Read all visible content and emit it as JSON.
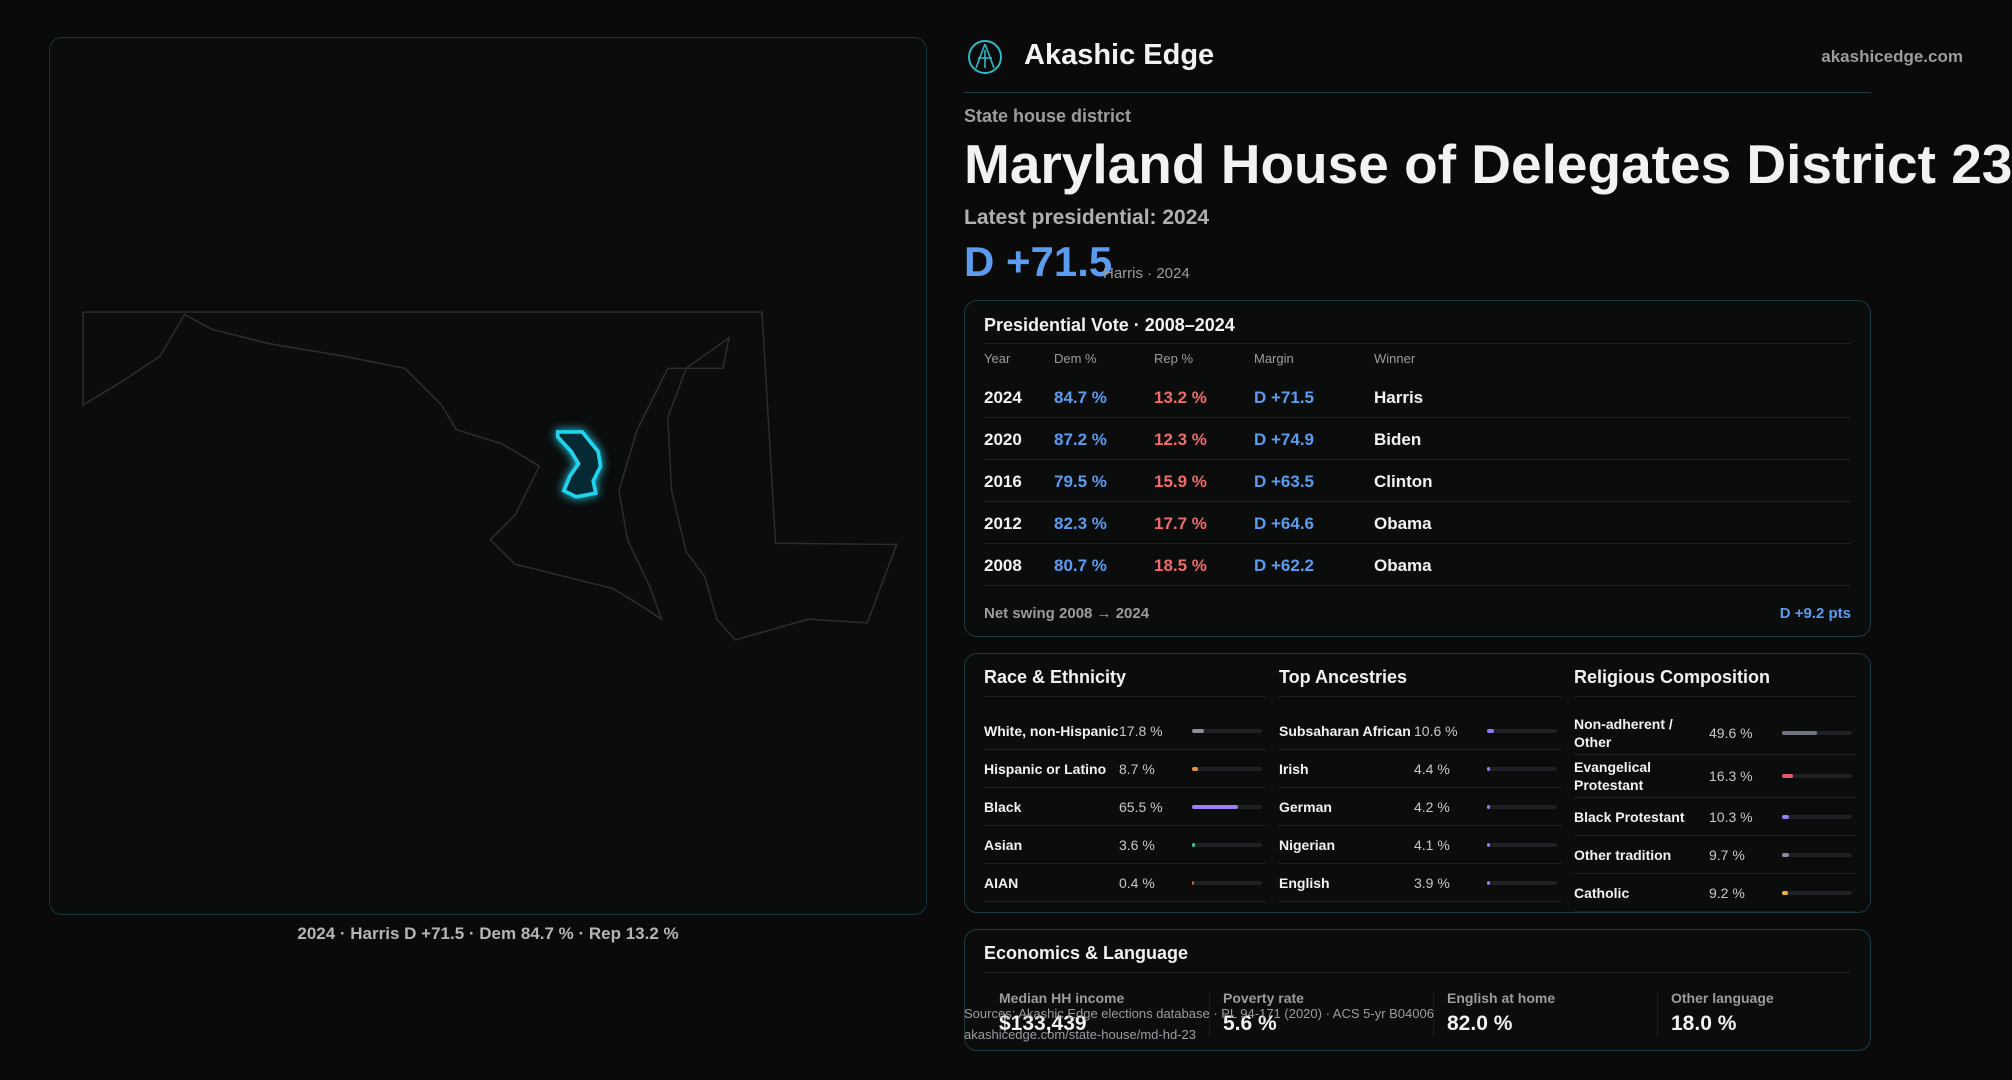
{
  "header": {
    "brand": "Akashic Edge",
    "site": "akashicedge.com"
  },
  "district": {
    "kind": "State house district",
    "title": "Maryland House of Delegates District 23",
    "latest": "Latest presidential: 2024",
    "margin": "D +71.5",
    "margin_note": "Harris · 2024"
  },
  "map": {
    "caption": "2024 · Harris D +71.5 · Dem 84.7 % · Rep 13.2 %"
  },
  "presidential": {
    "title": "Presidential Vote · 2008–2024",
    "columns": [
      "Year",
      "Dem %",
      "Rep %",
      "Margin",
      "Winner"
    ],
    "rows": [
      [
        "2024",
        "84.7 %",
        "13.2 %",
        "D +71.5",
        "Harris"
      ],
      [
        "2020",
        "87.2 %",
        "12.3 %",
        "D +74.9",
        "Biden"
      ],
      [
        "2016",
        "79.5 %",
        "15.9 %",
        "D +63.5",
        "Clinton"
      ],
      [
        "2012",
        "82.3 %",
        "17.7 %",
        "D +64.6",
        "Obama"
      ],
      [
        "2008",
        "80.7 %",
        "18.5 %",
        "D +62.2",
        "Obama"
      ]
    ],
    "swing_label": "Net swing 2008 → 2024",
    "swing": "D +9.2 pts"
  },
  "demographics": [
    {
      "title": "Race & Ethnicity",
      "rows": [
        {
          "label": "White, non-Hispanic",
          "value": 17.8,
          "value_label": "17.8 %",
          "color": "#8a8f98"
        },
        {
          "label": "Hispanic or Latino",
          "value": 8.7,
          "value_label": "8.7 %",
          "color": "#e0963a"
        },
        {
          "label": "Black",
          "value": 65.5,
          "value_label": "65.5 %",
          "color": "#9b7ef0"
        },
        {
          "label": "Asian",
          "value": 3.6,
          "value_label": "3.6 %",
          "color": "#34c79a"
        },
        {
          "label": "AIAN",
          "value": 0.4,
          "value_label": "0.4 %",
          "color": "#c8553d"
        }
      ]
    },
    {
      "title": "Top Ancestries",
      "rows": [
        {
          "label": "Subsaharan African",
          "value": 10.6,
          "value_label": "10.6 %",
          "color": "#8b7cf6"
        },
        {
          "label": "Irish",
          "value": 4.4,
          "value_label": "4.4 %",
          "color": "#8b7cf6"
        },
        {
          "label": "German",
          "value": 4.2,
          "value_label": "4.2 %",
          "color": "#8b7cf6"
        },
        {
          "label": "Nigerian",
          "value": 4.1,
          "value_label": "4.1 %",
          "color": "#8b7cf6"
        },
        {
          "label": "English",
          "value": 3.9,
          "value_label": "3.9 %",
          "color": "#8b7cf6"
        }
      ]
    },
    {
      "title": "Religious Composition",
      "rows": [
        {
          "label": "Non-adherent / Other",
          "value": 49.6,
          "value_label": "49.6 %",
          "color": "#70757e"
        },
        {
          "label": "Evangelical Protestant",
          "value": 16.3,
          "value_label": "16.3 %",
          "color": "#e5566b"
        },
        {
          "label": "Black Protestant",
          "value": 10.3,
          "value_label": "10.3 %",
          "color": "#9b7ef0"
        },
        {
          "label": "Other tradition",
          "value": 9.7,
          "value_label": "9.7 %",
          "color": "#8a8f98"
        },
        {
          "label": "Catholic",
          "value": 9.2,
          "value_label": "9.2 %",
          "color": "#e8b43a"
        }
      ]
    }
  ],
  "economics": {
    "title": "Economics & Language",
    "stats": [
      {
        "label": "Median HH income",
        "value": "$133,439"
      },
      {
        "label": "Poverty rate",
        "value": "5.6 %"
      },
      {
        "label": "English at home",
        "value": "82.0 %"
      },
      {
        "label": "Other language",
        "value": "18.0 %"
      }
    ]
  },
  "footer": {
    "sources": "Sources: Akashic Edge elections database · PL 94-171 (2020) · ACS 5-yr B04006",
    "url": "akashicedge.com/state-house/md-hd-23"
  }
}
